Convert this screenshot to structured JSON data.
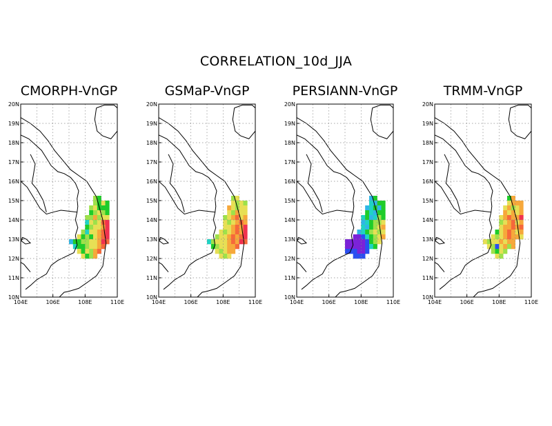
{
  "figure": {
    "title": "CORRELATION_10d_JJA"
  },
  "axes": {
    "lat_ticks": [
      "20N",
      "19N",
      "18N",
      "17N",
      "16N",
      "15N",
      "14N",
      "13N",
      "12N",
      "11N",
      "10N"
    ],
    "lon_ticks": [
      "104E",
      "106E",
      "108E",
      "110E"
    ],
    "lat_range": [
      10,
      20
    ],
    "lon_range": [
      104,
      110
    ],
    "grid": "dotted"
  },
  "colors": {
    "palette": {
      "V": "#7b22d8",
      "B": "#2a4ef0",
      "C": "#2fb6e6",
      "T": "#1fd3c4",
      "G": "#1fcc2a",
      "L": "#9ee14a",
      "Y": "#e7df55",
      "O": "#f6a83b",
      "R": "#f6683a",
      "P": "#f0324f"
    },
    "coastline": "#000000",
    "grid": "#888888"
  },
  "panels": [
    {
      "title": "CMORPH-VnGP",
      "grid_origin": {
        "lon": 107.0,
        "lat": 15.25
      },
      "cell_deg": 0.25,
      "rows": [
        "......LG.......",
        "......LGYG.....",
        ".....LYGGG.....",
        ".....GLYLG.....",
        "....LLOLYY.....",
        "....TYLYRP.....",
        "....GLYYOP.....",
        "...LTYYORP.....",
        "..YGLGYORP.....",
        "CGGLLYYOPR.....",
        ".TGGLYYOR......",
        "..YGYLOR.......",
        "...YGLO........"
      ]
    },
    {
      "title": "GSMaP-VnGP",
      "grid_origin": {
        "lon": 107.0,
        "lat": 15.25
      },
      "cell_deg": 0.25,
      "rows": [
        "......LY.......",
        "......YLYL.....",
        ".....OYLYY.....",
        ".....YLOYY.....",
        "....LYORYO.....",
        "....YLYORO.....",
        "....YYOROP.....",
        "...YLYOROP.....",
        "..LYYORORP.....",
        "TLYYYOROPR.....",
        ".GLYYOOR.......",
        "..YLYOO........",
        "...YLY........."
      ]
    },
    {
      "title": "PERSIANN-VnGP",
      "grid_origin": {
        "lon": 107.0,
        "lat": 15.25
      },
      "cell_deg": 0.25,
      "rows": [
        "......CG.......",
        "......TCGG.....",
        ".....CTGCG.....",
        ".....GTCGG.....",
        "....TGCTLG.....",
        "....CTGLLY.....",
        "....TCGLYO.....",
        "...CTGLYLY.....",
        "..VVBTGLYO.....",
        "VVVVVBGLY......",
        "VVVVVBTG.......",
        "BBBVVB.........",
        "..BBB.........."
      ]
    },
    {
      "title": "TRMM-VnGP",
      "grid_origin": {
        "lon": 107.0,
        "lat": 15.25
      },
      "cell_deg": 0.25,
      "rows": [
        "......GO.......",
        "......YOOO.....",
        ".....YOLYO.....",
        ".....OYOYO.....",
        "....YOROOP.....",
        "....LYORYO.....",
        "....YOOROR.....",
        "...GYOROYO.....",
        "..YLYOROOY.....",
        "YLYYOYOO.......",
        ".YLBYOLO.......",
        "..LGYL.........",
        "...YL.........."
      ]
    }
  ]
}
